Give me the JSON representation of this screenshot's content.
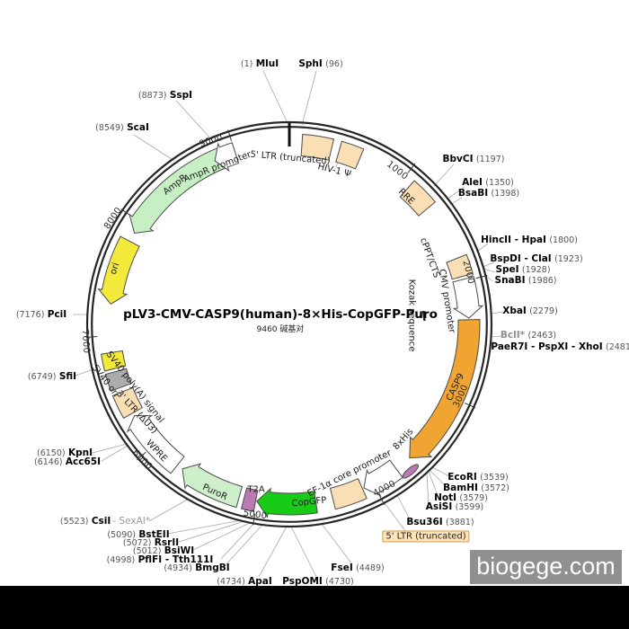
{
  "title": "pLV3-CMV-CASP9(human)-8×His-CopGFP-Puro",
  "subtitle": "9460 碱基对",
  "watermark": "biogege.com",
  "colors": {
    "ltr": "#FADFB5",
    "casp9": "#F0A431",
    "copgfp": "#17CB17",
    "puror": "#CDEFC9",
    "ampr": "#C6EFC3",
    "oriYellow": "#F2E93A",
    "grayBox": "#ACACAC",
    "marker": "#BD79B4",
    "highlight": "#FFE2B8",
    "backbone": "#262626"
  },
  "ticks": [
    "1000",
    "2000",
    "3000",
    "4000",
    "5000",
    "6000",
    "7000",
    "8000",
    "9000"
  ],
  "features": {
    "ltr5_top": "5' LTR (truncated)",
    "hiv1_psi": "HIV-1 Ψ",
    "rre": "RRE",
    "cppt": "cPPT/CTS",
    "cmv": "CMV promoter",
    "kozak": "Kozak sequence",
    "casp9": "CASP9",
    "his8": "8xHis",
    "ef1a": "EF-1α core promoter",
    "ltr5_selected": "5' LTR (truncated)",
    "copgfp": "CopGFP",
    "t2a": "T2A",
    "puror": "PuroR",
    "wpre": "WPRE",
    "ltr3": "3' LTR (ΔU3)",
    "sv40_polya": "SV40 poly(A) signal",
    "sv40_ori": "SV40 ori",
    "ori": "ori",
    "ampr": "AmpR",
    "ampr_promoter": "AmpR promoter"
  },
  "sites": [
    {
      "pos": "(1)",
      "name": "MluI"
    },
    {
      "pos": "(96)",
      "name": "SphI"
    },
    {
      "pos": "(8873)",
      "name": "SspI"
    },
    {
      "pos": "(8549)",
      "name": "ScaI"
    },
    {
      "pos": "(1197)",
      "name": "BbvCI"
    },
    {
      "pos": "(1350)",
      "name": "AleI"
    },
    {
      "pos": "(1398)",
      "name": "BsaBI"
    },
    {
      "pos": "(1800)",
      "name": "HincII - HpaI"
    },
    {
      "pos": "(1923)",
      "name": "BspDI - ClaI"
    },
    {
      "pos": "(1928)",
      "name": "SpeI"
    },
    {
      "pos": "(1986)",
      "name": "SnaBI"
    },
    {
      "pos": "(2279)",
      "name": "XbaI"
    },
    {
      "pos": "(2463)",
      "name": "BclI*"
    },
    {
      "pos": "(2481)",
      "name": "PaeR7I - PspXI - XhoI"
    },
    {
      "pos": "(3539)",
      "name": "EcoRI"
    },
    {
      "pos": "(3572)",
      "name": "BamHI"
    },
    {
      "pos": "(3579)",
      "name": "NotI"
    },
    {
      "pos": "(3599)",
      "name": "AsiSI"
    },
    {
      "pos": "(3881)",
      "name": "Bsu36I"
    },
    {
      "pos": "(4489)",
      "name": "FseI"
    },
    {
      "pos": "(4730)",
      "name": "PspOMI"
    },
    {
      "pos": "(4734)",
      "name": "ApaI"
    },
    {
      "pos": "(4934)",
      "name": "BmgBI"
    },
    {
      "pos": "(4998)",
      "name": "PflFI - Tth111I"
    },
    {
      "pos": "(5012)",
      "name": "BsiWI"
    },
    {
      "pos": "(5072)",
      "name": "RsrII"
    },
    {
      "pos": "(5090)",
      "name": "BstEII"
    },
    {
      "pos": "(5523)",
      "name": "CsiI",
      "extra": "- SexAI*"
    },
    {
      "pos": "(6146)",
      "name": "Acc65I"
    },
    {
      "pos": "(6150)",
      "name": "KpnI"
    },
    {
      "pos": "(6749)",
      "name": "SfiI"
    },
    {
      "pos": "(7176)",
      "name": "PciI"
    }
  ]
}
